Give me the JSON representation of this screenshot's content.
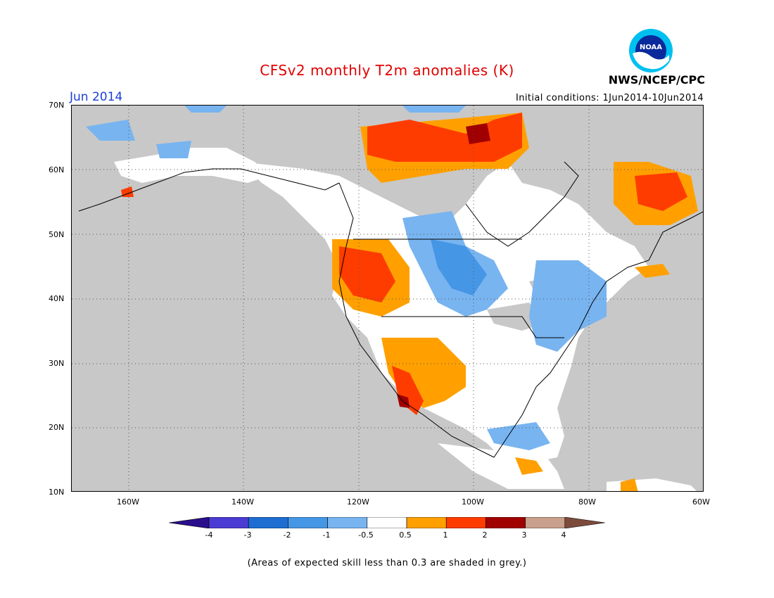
{
  "header": {
    "title": "CFSv2 monthly T2m anomalies (K)",
    "month": "Jun 2014",
    "initial_conditions": "Initial conditions: 1Jun2014-10Jun2014",
    "agency": "NWS/NCEP/CPC",
    "logo_text": "NOAA"
  },
  "map": {
    "lat_labels": [
      "70N",
      "60N",
      "50N",
      "40N",
      "30N",
      "20N",
      "10N"
    ],
    "lon_labels": [
      "160W",
      "140W",
      "120W",
      "100W",
      "80W",
      "60W"
    ],
    "lat_range": [
      10,
      70
    ],
    "lon_range": [
      -170,
      -60
    ],
    "colors": {
      "low_skill_grey": "#c8c8c8",
      "near_zero_white": "#ffffff",
      "m0_5_to_m1": "#78b4f0",
      "m1_to_m2": "#4696e6",
      "m2_to_m3": "#1e6ed2",
      "p0_5_to_p1": "#ffa000",
      "p1_to_p2": "#ff3c00",
      "p2_to_p3": "#a00000"
    }
  },
  "colorbar": {
    "labels": [
      "-4",
      "-3",
      "-2",
      "-1",
      "-0.5",
      "0.5",
      "1",
      "2",
      "3",
      "4"
    ],
    "colors": [
      "#2a0f8c",
      "#4a3cd2",
      "#1e6ed2",
      "#4696e6",
      "#78b4f0",
      "#ffffff",
      "#ffa000",
      "#ff3c00",
      "#a00000",
      "#c8a08c",
      "#7d4b3c"
    ]
  },
  "footnote": "(Areas of expected skill less than 0.3 are shaded in grey.)"
}
